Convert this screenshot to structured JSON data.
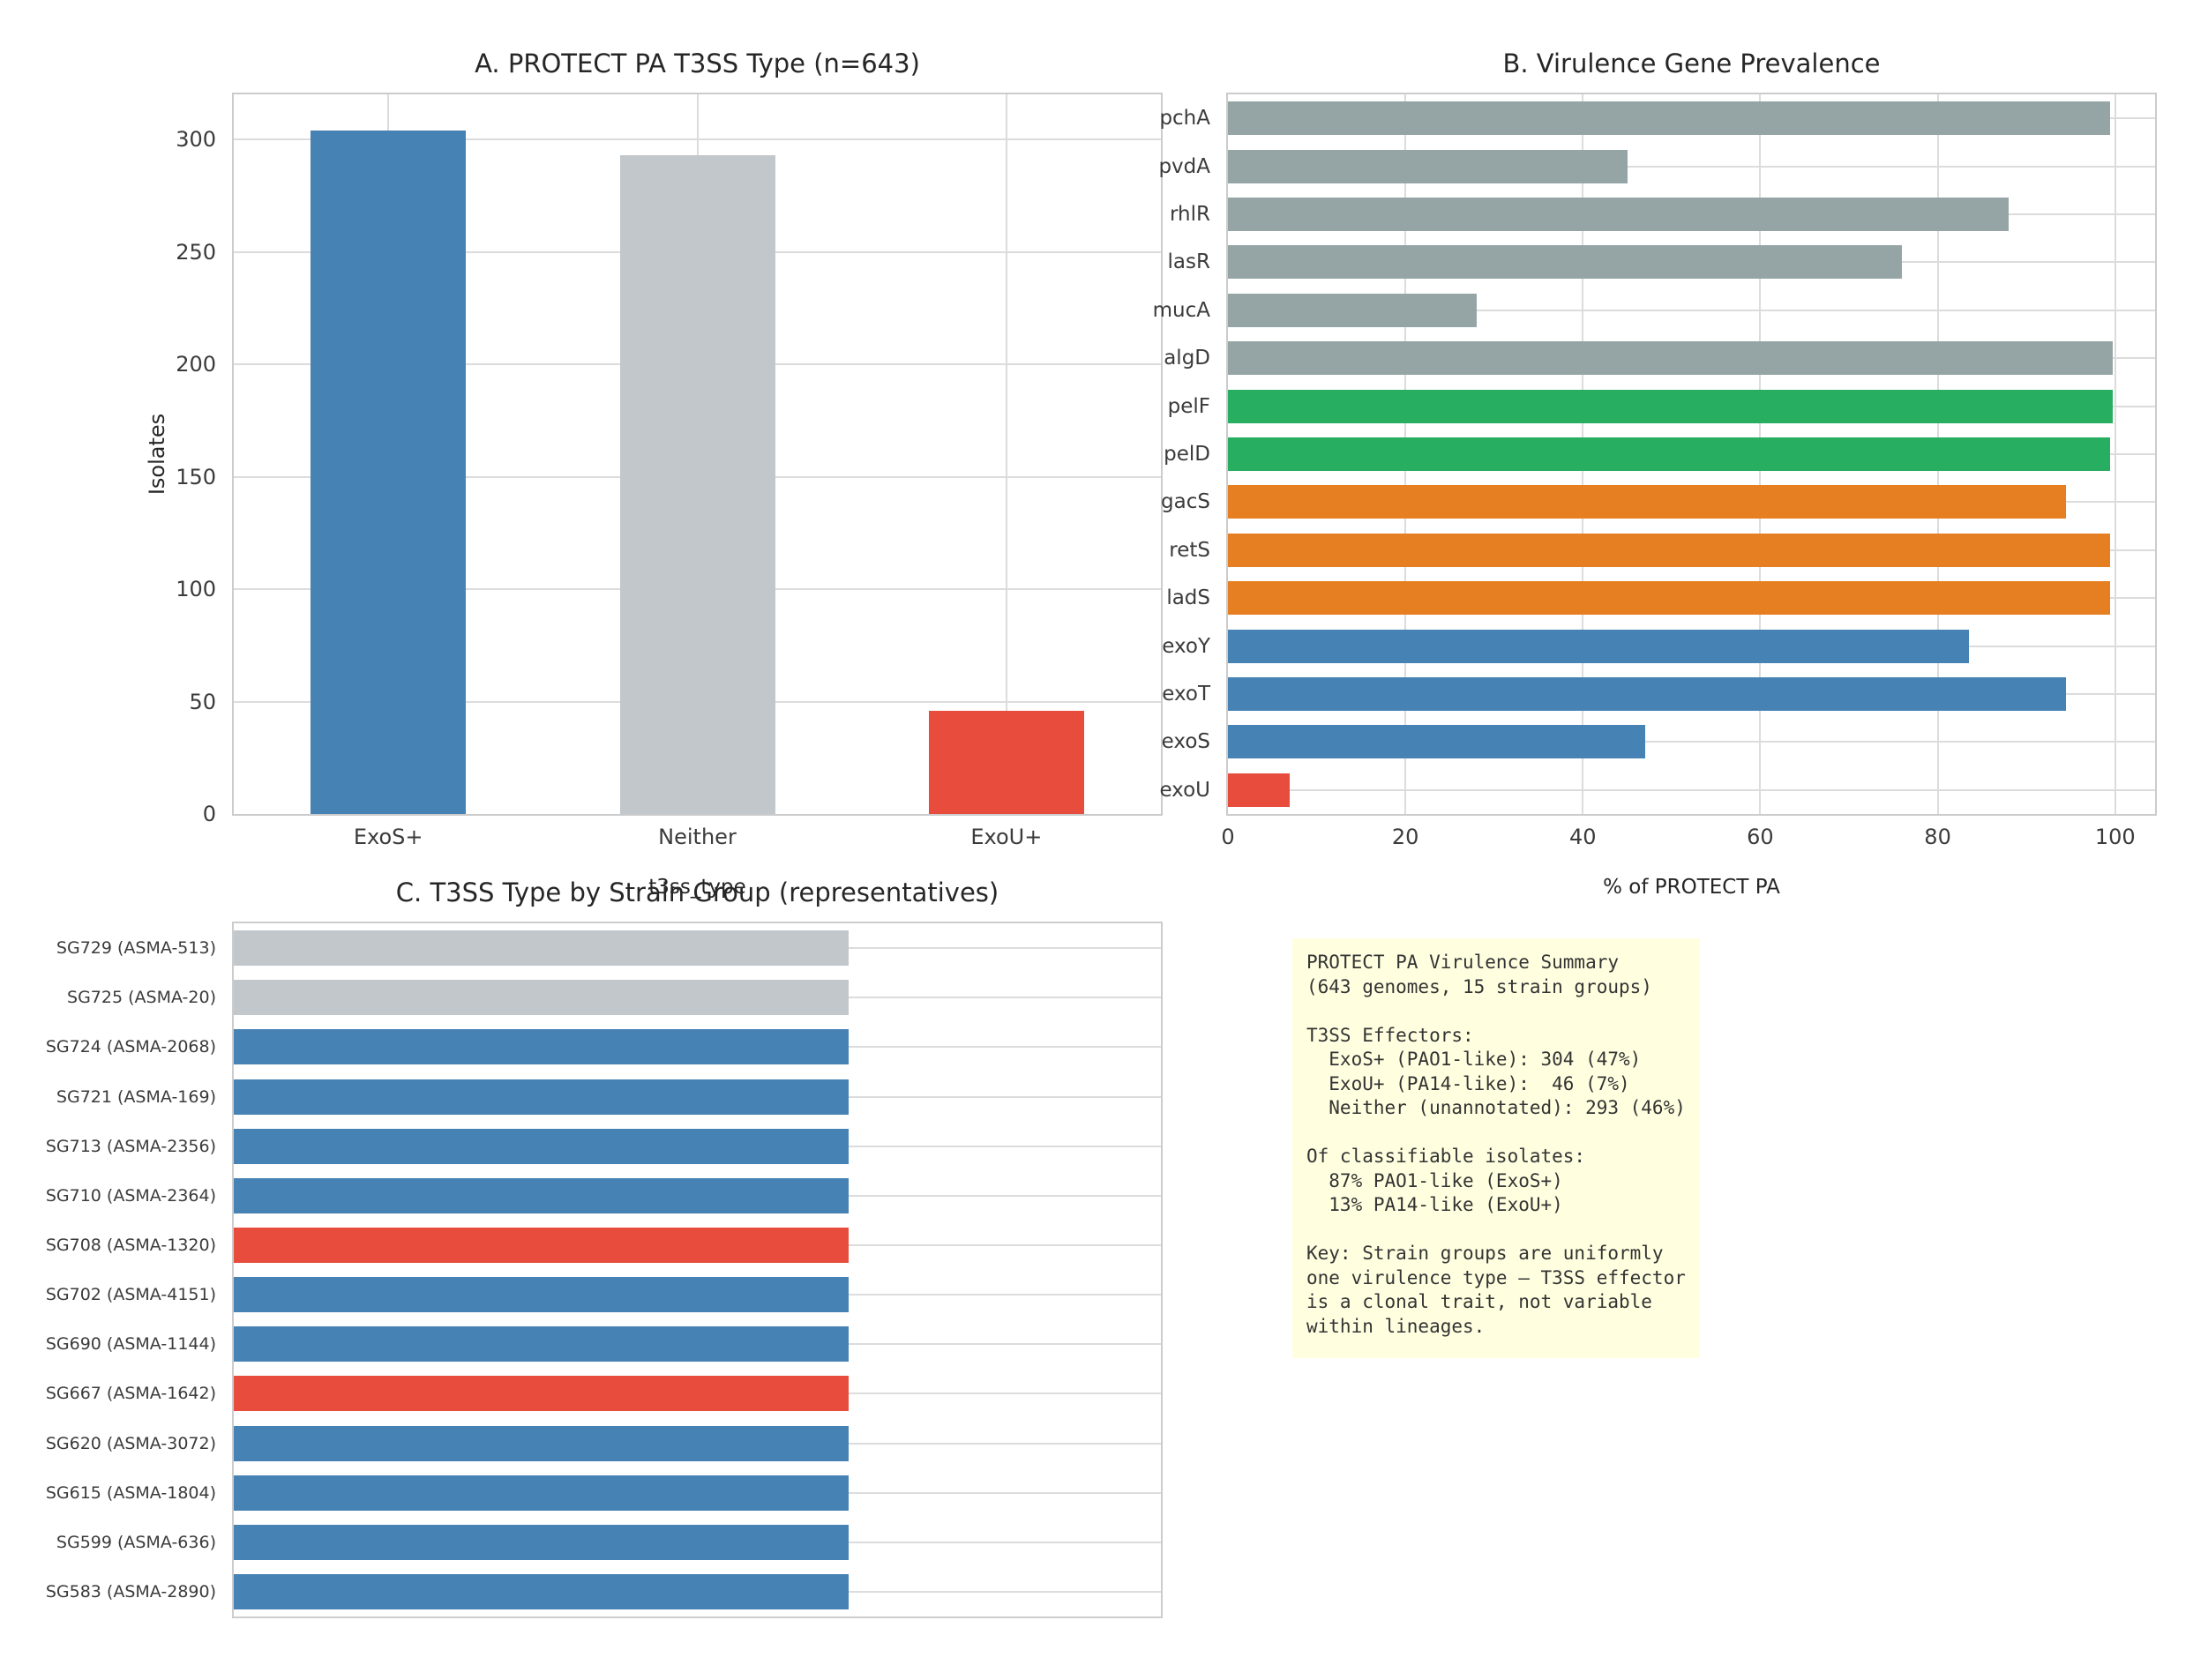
{
  "figure": {
    "background": "#ffffff"
  },
  "colors": {
    "exos_blue": "#4682B4",
    "neither_gray": "#C2C7CB",
    "exou_red": "#E74C3C",
    "prevalence_gray": "#95A5A6",
    "pel_green": "#27AE60",
    "sensor_orange": "#E67E22",
    "grid": "#DCDCDC",
    "note_background": "#FFFFE0"
  },
  "chart_data": [
    {
      "id": "A",
      "type": "bar",
      "title": "A. PROTECT PA T3SS Type (n=643)",
      "categories": [
        "ExoS+",
        "Neither",
        "ExoU+"
      ],
      "values": [
        304,
        293,
        46
      ],
      "bar_colors": [
        "#4682B4",
        "#C2C7CB",
        "#E74C3C"
      ],
      "xlabel": "t3ss_type",
      "ylabel": "Isolates",
      "ylim": [
        0,
        320
      ],
      "yticks": [
        0,
        50,
        100,
        150,
        200,
        250,
        300
      ],
      "grid": true,
      "legend": "none"
    },
    {
      "id": "B",
      "type": "bar-horizontal",
      "title": "B. Virulence Gene Prevalence",
      "categories": [
        "pchA",
        "pvdA",
        "rhlR",
        "lasR",
        "mucA",
        "algD",
        "pelF",
        "pelD",
        "gacS",
        "retS",
        "ladS",
        "exoY",
        "exoT",
        "exoS",
        "exoU"
      ],
      "values": [
        99.4,
        45,
        88,
        76,
        28,
        99.7,
        99.7,
        99.4,
        94.5,
        99.4,
        99.4,
        83.5,
        94.5,
        47,
        7
      ],
      "bar_colors": [
        "#95A5A6",
        "#95A5A6",
        "#95A5A6",
        "#95A5A6",
        "#95A5A6",
        "#95A5A6",
        "#27AE60",
        "#27AE60",
        "#E67E22",
        "#E67E22",
        "#E67E22",
        "#4682B4",
        "#4682B4",
        "#4682B4",
        "#E74C3C"
      ],
      "xlabel": "% of PROTECT PA",
      "ylabel": "",
      "xlim": [
        0,
        104.5
      ],
      "xticks": [
        0,
        20,
        40,
        60,
        80,
        100
      ],
      "grid": true,
      "legend": "none"
    },
    {
      "id": "C",
      "type": "bar-horizontal",
      "title": "C. T3SS Type by Strain Group (representatives)",
      "categories": [
        "SG729 (ASMA-513)",
        "SG725 (ASMA-20)",
        "SG724 (ASMA-2068)",
        "SG721 (ASMA-169)",
        "SG713 (ASMA-2356)",
        "SG710 (ASMA-2364)",
        "SG708 (ASMA-1320)",
        "SG702 (ASMA-4151)",
        "SG690 (ASMA-1144)",
        "SG667 (ASMA-1642)",
        "SG620 (ASMA-3072)",
        "SG615 (ASMA-1804)",
        "SG599 (ASMA-636)",
        "SG583 (ASMA-2890)"
      ],
      "values": [
        1,
        1,
        1,
        1,
        1,
        1,
        1,
        1,
        1,
        1,
        1,
        1,
        1,
        1
      ],
      "bar_colors": [
        "#C2C7CB",
        "#C2C7CB",
        "#4682B4",
        "#4682B4",
        "#4682B4",
        "#4682B4",
        "#E74C3C",
        "#4682B4",
        "#4682B4",
        "#E74C3C",
        "#4682B4",
        "#4682B4",
        "#4682B4",
        "#4682B4"
      ],
      "xlabel": "",
      "ylabel": "",
      "xlim": [
        0,
        1.508
      ],
      "xticks": [],
      "grid": true,
      "legend": "none"
    }
  ],
  "summary_box": {
    "background": "#FFFFE0",
    "text": "PROTECT PA Virulence Summary\n(643 genomes, 15 strain groups)\n\nT3SS Effectors:\n  ExoS+ (PAO1-like): 304 (47%)\n  ExoU+ (PA14-like):  46 (7%)\n  Neither (unannotated): 293 (46%)\n\nOf classifiable isolates:\n  87% PAO1-like (ExoS+)\n  13% PA14-like (ExoU+)\n\nKey: Strain groups are uniformly\none virulence type — T3SS effector\nis a clonal trait, not variable\nwithin lineages."
  }
}
